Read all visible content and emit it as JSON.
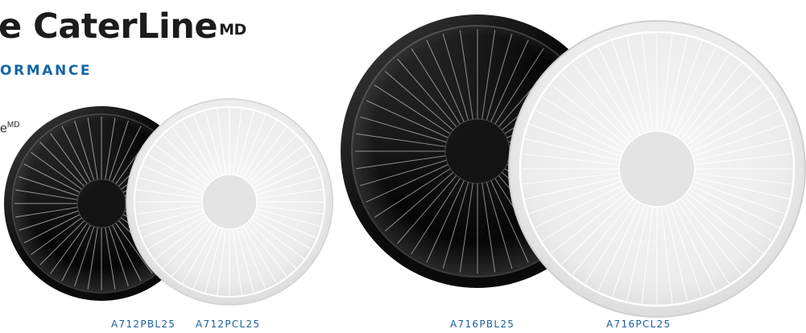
{
  "heading": {
    "title": "e CaterLine",
    "mark": "MD"
  },
  "subheading": "ORMANCE",
  "side_mark": {
    "text": "e",
    "mark": "MD"
  },
  "products": [
    {
      "code": "A712PBL25",
      "color": "#0a0a0a"
    },
    {
      "code": "A712PCL25",
      "color": "#f1f1f1"
    },
    {
      "code": "A716PBL25",
      "color": "#0a0a0a"
    },
    {
      "code": "A716PCL25",
      "color": "#f1f1f1"
    }
  ],
  "colors": {
    "heading_text": "#1c1c1c",
    "accent_blue": "#1565a8",
    "code_blue": "#1a5fa0"
  }
}
